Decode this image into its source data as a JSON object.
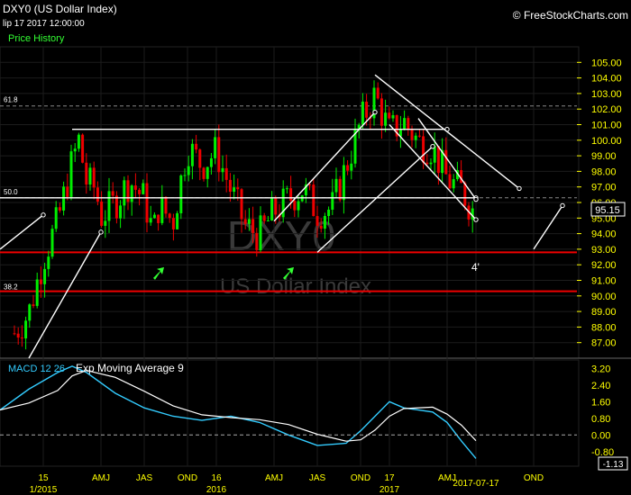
{
  "header": {
    "title": "DXY0 (US Dollar Index)",
    "date": "lip 17 2017 12:00:00",
    "price_history": "Price History",
    "credit": "© FreeStockCharts.com"
  },
  "watermark": {
    "symbol": "DXY0",
    "name": "US Dollar Index"
  },
  "annotations": {
    "wave_label": "4'"
  },
  "macd": {
    "label": "MACD 12 26",
    "signal_label": "Exp Moving Average 9",
    "last_value": "-1.13"
  },
  "colors": {
    "up": "#00ee00",
    "down": "#ee0000",
    "level_red": "#ee0000",
    "macd": "#33ccff",
    "signal": "#ffffff",
    "tick": "#ffff00"
  },
  "chart_data": {
    "type": "candlestick",
    "title": "DXY0 (US Dollar Index)",
    "last_price": "95.15",
    "ylim": [
      86,
      106
    ],
    "y_ticks": [
      "87.00",
      "88.00",
      "89.00",
      "90.00",
      "91.00",
      "92.00",
      "93.00",
      "94.00",
      "95.00",
      "96.00",
      "97.00",
      "98.00",
      "99.00",
      "100.00",
      "101.00",
      "102.00",
      "103.00",
      "104.00",
      "105.00"
    ],
    "macd_ticks": [
      "-0.80",
      "0.00",
      "0.80",
      "1.60",
      "2.40",
      "3.20"
    ],
    "macd_ylim": [
      -1.5,
      3.6
    ],
    "x_ticks": [
      "15",
      "AMJ",
      "JAS",
      "OND",
      "16",
      "AMJ",
      "JAS",
      "OND",
      "17",
      "AMJ",
      "2017-07-17",
      "OND"
    ],
    "x_ticks_sub": [
      "1/2015",
      "2016",
      "2017"
    ],
    "x_tick_dates": [
      "2015-01",
      "2015-05",
      "2015-08",
      "2015-11",
      "2016-01",
      "2016-05",
      "2016-08",
      "2016-11",
      "2017-01",
      "2017-05",
      "2017-07",
      "2017-11"
    ],
    "x_sub_dates": [
      "2015-01",
      "2016-01",
      "2017-01"
    ],
    "x_range": [
      "2014-10",
      "2018-02"
    ],
    "fib_levels": [
      {
        "label": "61.8",
        "value": 102.2
      },
      {
        "label": "50.0",
        "value": 96.3
      },
      {
        "label": "38.2",
        "value": 90.2
      }
    ],
    "red_levels": [
      92.8,
      90.3
    ],
    "gray_levels": [
      102.2,
      96.3
    ],
    "weekly_close": [
      {
        "date": "2014-11",
        "value": 87.6
      },
      {
        "date": "2014-12",
        "value": 88.9
      },
      {
        "date": "2015-01",
        "value": 92.4
      },
      {
        "date": "2015-02",
        "value": 94.8
      },
      {
        "date": "2015-03",
        "value": 98.6
      },
      {
        "date": "2015-03-15",
        "value": 100.0
      },
      {
        "date": "2015-04",
        "value": 97.3
      },
      {
        "date": "2015-04-20",
        "value": 96.9
      },
      {
        "date": "2015-05",
        "value": 95.1
      },
      {
        "date": "2015-06",
        "value": 96.0
      },
      {
        "date": "2015-07",
        "value": 97.4
      },
      {
        "date": "2015-08",
        "value": 96.2
      },
      {
        "date": "2015-08-20",
        "value": 94.0
      },
      {
        "date": "2015-09",
        "value": 95.8
      },
      {
        "date": "2015-10",
        "value": 94.8
      },
      {
        "date": "2015-11",
        "value": 99.6
      },
      {
        "date": "2015-12",
        "value": 98.4
      },
      {
        "date": "2016-01",
        "value": 99.3
      },
      {
        "date": "2016-02",
        "value": 96.8
      },
      {
        "date": "2016-03",
        "value": 94.5
      },
      {
        "date": "2016-04",
        "value": 93.9
      },
      {
        "date": "2016-05",
        "value": 95.4
      },
      {
        "date": "2016-06",
        "value": 96.2
      },
      {
        "date": "2016-07",
        "value": 96.9
      },
      {
        "date": "2016-08",
        "value": 95.4
      },
      {
        "date": "2016-09",
        "value": 95.6
      },
      {
        "date": "2016-10",
        "value": 98.3
      },
      {
        "date": "2016-11",
        "value": 101.1
      },
      {
        "date": "2016-12",
        "value": 102.9
      },
      {
        "date": "2017-01",
        "value": 100.5
      },
      {
        "date": "2017-02",
        "value": 101.2
      },
      {
        "date": "2017-03",
        "value": 99.9
      },
      {
        "date": "2017-04",
        "value": 99.5
      },
      {
        "date": "2017-05",
        "value": 97.5
      },
      {
        "date": "2017-06",
        "value": 96.8
      },
      {
        "date": "2017-07",
        "value": 95.15
      }
    ]
  }
}
